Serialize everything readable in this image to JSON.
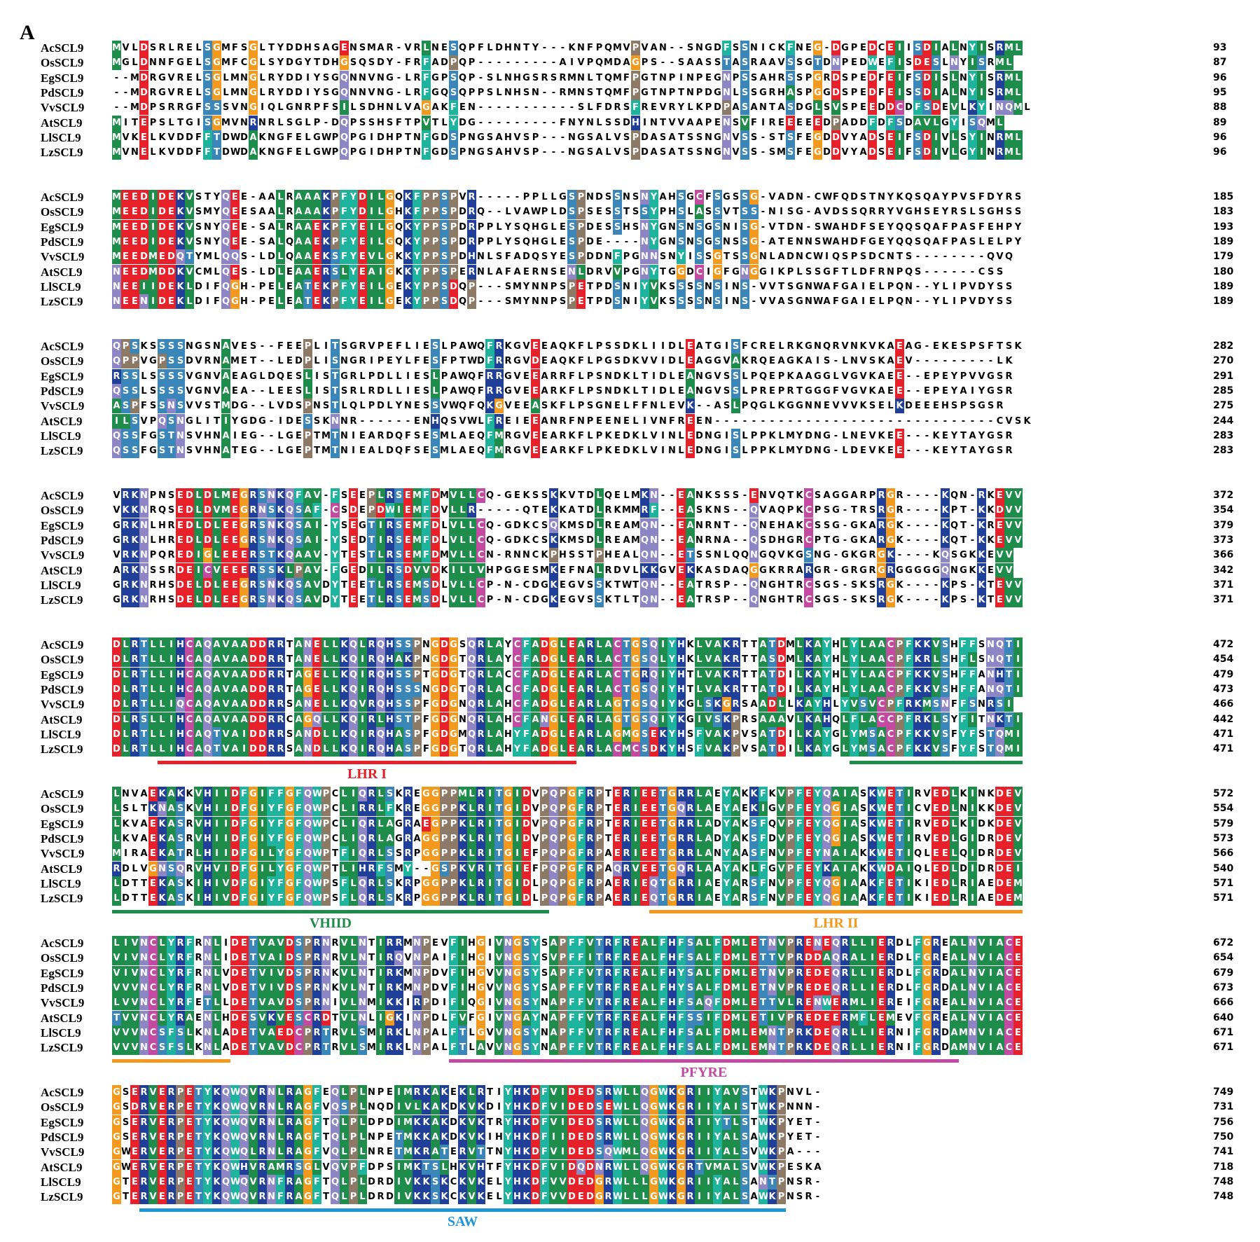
{
  "figure": {
    "panel_label": "A"
  },
  "colors": {
    "D": "#e8202a",
    "E": "#e8202a",
    "K": "#1f3f99",
    "R": "#1f3f99",
    "H": "#1f3f99",
    "S": "#3b86b8",
    "T": "#3b86b8",
    "N": "#8e86c4",
    "Q": "#8e86c4",
    "G": "#f39a1e",
    "P": "#8d7a66",
    "C": "#c24aa0",
    "A": "#1e8c4a",
    "V": "#1e8c4a",
    "L": "#1e8c4a",
    "I": "#1e8c4a",
    "M": "#1e8c4a",
    "F": "#1db39c",
    "W": "#1db39c",
    "Y": "#1db39c"
  },
  "alignment": {
    "species": [
      "AcSCL9",
      "OsSCL9",
      "EgSCL9",
      "PdSCL9",
      "VvSCL9",
      "AtSCL9",
      "LlSCL9",
      "LzSCL9"
    ],
    "blocks": [
      {
        "rows": [
          {
            "name": "AcSCL9",
            "seq": "MVLDSRLRELSGMFSGLTYDDHSAGENSMAR-VRLNESQPFLDHNTY---KNFPQMVPVAN--SNGDFSSNICKFNEG-DGPEDCEIISDIALNYISRML",
            "end": "93"
          },
          {
            "name": "OsSCL9",
            "seq": "MGLDNNFGELSGMFCGLSYDGYTDHGSQSDY-FRFADPQP---------AIVPQMDAGPS--SAASSTASRAAVSSGTDNPEDWEFISDESLNYISRML",
            "end": "87"
          },
          {
            "name": "EgSCL9",
            "seq": "--MDRGVRELSGLMNGLRYDDIYSGQNNVNG-LRFGPSQP-SLNHGSRSRMNLTQMFPGTNPINPEGNPSSAHRSSPGRDSPEDFEIFSDISLNYISRML",
            "end": "96"
          },
          {
            "name": "PdSCL9",
            "seq": "--MDRGVRELSGLMNGLRYDDIYSGQNNVNG-LRFGQSQPPSLNHSN--RMNSTQMFPGTNPTNPDGNLSSGRHASPGGDSPEDFEISSDIALNYISRML",
            "end": "95"
          },
          {
            "name": "VvSCL9",
            "seq": "--MDPSRRGFSSSVNGIQLGNRPFSILSDHNLVAGAKFEN-----------SLFDRSFREVRYLKPDPASANTASDGLSVSPEEDDCDFSDEVLKYINQML",
            "end": "88"
          },
          {
            "name": "AtSCL9",
            "seq": "MITEPSLTGISGMVNRNRLSGLP-DQPSSHSFTPVTLYDG---------FNYNLSSDHINTVVAAPENSVFIREEEEEDPADDFDFSDAVLGYISQML",
            "end": "89"
          },
          {
            "name": "LlSCL9",
            "seq": "MVKELKVDDFFTDWDAKNGFELGWPQPGIDHPTNFGDSPNGSAHVSP---NGSALVSPDASATSSNGNVSS-STSFEGDDVYADSEIFSDIVLSYINRML",
            "end": "96"
          },
          {
            "name": "LzSCL9",
            "seq": "MVNELKVDDFFTDWDAKNGFELGWPQPGIDHPTNFGDSPNGSAHVSP---NGSALVSPDASATSSNGNVSS-SMSFEGDDVYADSEIFSDIVLGYINRML",
            "end": "96"
          }
        ],
        "domains": []
      },
      {
        "rows": [
          {
            "name": "AcSCL9",
            "seq": "MEEDIDEKVSTYQEE-AALRAAAKPFYDILGQKFPPSPVR-----PPLLGSPNDSSNSNYAHSGCFSGSSG-VADN-CWFQDSTNYKQSQAYPVSFDYRS",
            "end": "185"
          },
          {
            "name": "OsSCL9",
            "seq": "MEEDIDEKVSMYQEESAALRAAAKPFYDILGHKFPPSPDRQ--LVAWPLDSPSESSTSSYPHSLASSVTSS-NISG-AVDSSQRRYVGHSEYRSLSGHSS",
            "end": "183"
          },
          {
            "name": "EgSCL9",
            "seq": "MEEDIDEKVSNYQEE-SALRAAEKPFYEILGQKYPPSPDRPPLYSQHGLESPDESSHSNYGNSNSGSNISG-VTDN-SWAHDFSEYQQSQAFPASFEHPY",
            "end": "193"
          },
          {
            "name": "PdSCL9",
            "seq": "MEEDIDEKVSNYQEE-SALQAAEKPFYEILGQKYPPSPDRPPLYSQHGLESPDE----NYGNSNSGSNSSG-ATENNSWAHDFGEYQQSQAFPASLELPY",
            "end": "189"
          },
          {
            "name": "VvSCL9",
            "seq": "MEEDMEDQTYMLQQS-LDLQAAEKSFYEVLGKKYPPSPDHNLSFADQSYESPDDNFPGNNSNYISSGTSSGNLADNCWIQSPSDCNTS--------QVQ",
            "end": "179"
          },
          {
            "name": "AtSCL9",
            "seq": "NEEDMDDKVCMLQES-LDLEAAERSLYEAIGKKYPPSPERNLAFAERNSENLDRVVPGNYTGGDCIGFGNGGIKPLSSGFTLDFRNPQS------CSS",
            "end": "180"
          },
          {
            "name": "LlSCL9",
            "seq": "NEEIIDEKLDIFQGH-PELEATEKPFYEILGEKYPPSDQP---SMYNNPSPETPDSNIYVKSSSSNSINS-VVTSGNWAFGAIELPQN--YLIPVDYSS",
            "end": "189"
          },
          {
            "name": "LzSCL9",
            "seq": "NEENIDEKLDIFQGH-PELEATEKPFYEILGEKYPPSDQP---SMYNNPSPETPDSNIYVKSSSSNSINS-VVASGNWAFGAIELPQN--YLIPVDYSS",
            "end": "189"
          }
        ],
        "domains": []
      },
      {
        "rows": [
          {
            "name": "AcSCL9",
            "seq": "QPSKSSSSNGSNAVES--FEEPLITSGRVPEFLIESLPAWQFRKGVEEAQKFLPSSDKLIIDLEATGISFCRELRKGNQRVNKVKAEAG-EKESPSFTSK",
            "end": "282"
          },
          {
            "name": "OsSCL9",
            "seq": "QPPVGPSSDVRNAMET--LEDPLISNGRIPEYLFESFPTWDFRRGVDEAQKFLPGSDKVVIDLEAGGVAKRQEAGKAIS-LNVSKAEV---------LK",
            "end": "270"
          },
          {
            "name": "EgSCL9",
            "seq": "RSSLSSSSVGNVAEAGLDQESLISTGRLPDLLIESLPAWQFRRGVEEARRFLPSNDKLTIDLEANGVSSLPQEPKAAGGLVGVKAEE--EPEYPVVGSR",
            "end": "291"
          },
          {
            "name": "PdSCL9",
            "seq": "QSSLSSSSVGNVAEA--LEESLISTSRLRDLLIESLPAWQFRRGVEEARKFLPSNDKLTIDLEANGVSSLPREPRTGGGFVGVKAEE--EPEYAIYGSR",
            "end": "285"
          },
          {
            "name": "VvSCL9",
            "seq": "ASPFSSNSVVSTMDG--LVDSPNSTLQLPDLYNESSVWQFQKGVEEASKFLPSGNELFFNLEVK--ASLPQGLKGGNNEVVVKSELKDEEEHSPSGSR",
            "end": "275"
          },
          {
            "name": "AtSCL9",
            "seq": "ILSVPQSNGLITIYGDG-IDESSKNNR------ENHQSVWLFREIEEANRFNPEENELIVNFREEN-------------------------------CVSK",
            "end": "244"
          },
          {
            "name": "LlSCL9",
            "seq": "QSSFGSTNSVHNAIEG--LGEPTMTNIEARDQFSESMLAEQFMRGVEEARKFLPKEDKLVINLEDNGISLPPKLMYDNG-LNEVKEE---KEYTAYGSR",
            "end": "283"
          },
          {
            "name": "LzSCL9",
            "seq": "QSSFGSTNSVHNATEG--LGEPTMTNIEALDQFSESMLAEQFMRGVEEARKFLPKEDKLVINLEDNGISLPPKLMYDNG-LDEVKEE---KEYTAYGSR",
            "end": "283"
          }
        ],
        "domains": []
      },
      {
        "rows": [
          {
            "name": "AcSCL9",
            "seq": "VRKNPNSEDLDLMEGRSNKQFAV-FSEEPLRSEMFDMVLLCQ-GEKSSKKVTDLQELMKN--EANKSSS-ENVQTKCSAGGARPRGR----KQN-RKEVV",
            "end": "372"
          },
          {
            "name": "OsSCL9",
            "seq": "VKKNRQSEDLDVMEGRNSKQSAF-CSDEPDWIEMFDVLLR-----QTEKKATDLRKMMRF--EASKNS--QVAQPKCPSG-TRSRGR----KPT-KKDVV",
            "end": "354"
          },
          {
            "name": "EgSCL9",
            "seq": "GRKNLHREDLDLEEGRSNKQSAI-YSEGTIRSEMFDLVLLCQ-GDKCSQKMSDLREAMQN--EANRNT--QNEHAKCSSG-GKARGK----KQT-KREVV",
            "end": "379"
          },
          {
            "name": "PdSCL9",
            "seq": "GRKNLHREDLDLEEGRSNKQSAI-YSEDTIRSEMFDLVLLCQ-GDKCSKKMSDLREAMQN--EANRNA--QSDHGRCPTG-GKARGK----KQT-KKEVV",
            "end": "373"
          },
          {
            "name": "VvSCL9",
            "seq": "VRKNPQREDIGLEEERSTKQAAV-YTESTLRSEMFDMVLLCN-RNNCKPHSSTPHEALQN--ETSSNLQQNGQVKGSNG-GKGRGK----KQSGKKEVV",
            "end": "366"
          },
          {
            "name": "AtSCL9",
            "seq": "ARKNSSRDEICVEEERSSKLPAV-FGEDILRSDVVDKILLVHPGGESMKEFNALRDVLKKGVEKKASDAQGGKRRARGR-GRGRGRGGGGGQNGKKEVV",
            "end": "342"
          },
          {
            "name": "LlSCL9",
            "seq": "GRKNRHSDELDLEEGRSNKQSAVDYTEETLRSEMSDLVLLCP-N-CDGKEGVSSKTWTQN--EATRSP--QNGHTRCSGS-SKSRGK----KPS-KTEVV",
            "end": "371"
          },
          {
            "name": "LzSCL9",
            "seq": "GRKNRHSDELDLEEGRSNKQSAVDYTEETLRSEMSDLVLLCP-N-CDGKEGVSSKTLTQN--EATRSP--QNGHTRCSGS-SKSRGK----KPS-KTEVV",
            "end": "371"
          }
        ],
        "domains": []
      },
      {
        "rows": [
          {
            "name": "AcSCL9",
            "seq": "DLRTLLIHCAQAVAADDRRTANELLKQLRQHSSPNGDGSQRLAYCFADGLEARLACTGSQIYHKLVAKRTTATDMLKAYHLYLAACPFKKVSHFFSNQTI",
            "end": "472"
          },
          {
            "name": "OsSCL9",
            "seq": "DLRTLLIHCAQAVAADDRRTANELLKQIRQHAKPNGDGTQRLAYCFADGLEARLACTGSQLYHKLVAKRTTASDMLKAYHLYLAACPFKRLSHFLSNQTI",
            "end": "454"
          },
          {
            "name": "EgSCL9",
            "seq": "DLRTLLIHCAQAVAADDRRTAGELLKQIRQHSSPTGDGTQRLACCFADGLEARLACTGRQIYHTLVAKRTTATDILKAYHLYLAACPFKKVSHFFANHTI",
            "end": "479"
          },
          {
            "name": "PdSCL9",
            "seq": "DLRTLLIHCAQAVAADDRRTAGELLKQIRQHSSSNGDGTQRLACCFADGLEARLACTGSQIYHTLVAKRTTATDILKAYHLYLAACPFKKVSHFFANQTI",
            "end": "473"
          },
          {
            "name": "VvSCL9",
            "seq": "DLRTLLIQCAQAVAADDRRSANELLKQVRQHSSPFGDGNQRLAHCFADGLEARLAGTGSQIYKGLSKGRSAADLLKAYHLYVSVCPFRKMSNFFSNRSI",
            "end": "466"
          },
          {
            "name": "AtSCL9",
            "seq": "DLRSLLIHCAQAVAADDRRCAGQLLKQIRLHSTPFGDGNQRLAHCFANGLEARLAGTGSQIYKGIVSKPRSAAAVLKAHQLFLACCPFRKLSYFITNKTI",
            "end": "442"
          },
          {
            "name": "LlSCL9",
            "seq": "DLRTLLIHCAQTVAIDDRRSANDLLKQIRQHASPFGDGMQRLAHYFADGLEARLAGMGSEKYHSFVAKPVSATDILKAYGLYMSACPFKKVSFYFSTQMI",
            "end": "471"
          },
          {
            "name": "LzSCL9",
            "seq": "DLRTLLIHCAQTVAIDDRRSANDLLKQIRQHASPFGDGTQRLAHYFADGLEARLACMCSDKYHSFVAKPVSATDILKAYGLYMSACPFKKVSFYFSTQMI",
            "end": "471"
          }
        ],
        "domains": [
          {
            "label": "LHR I",
            "color": "#e8202a",
            "start": 5,
            "end": 51
          },
          {
            "label": "",
            "color": "#1e8c4a",
            "start": 81,
            "end": 100
          }
        ]
      },
      {
        "rows": [
          {
            "name": "AcSCL9",
            "seq": "LNVAEKAKKVHIIDFGIFFGFQWPCLIQRLSKREGGPPMLRITGIDVPQPGFRPTERIEETGRRLAEYAKKFKVPFEYQAIASKWETIRVEDLKINKDEV",
            "end": "572"
          },
          {
            "name": "OsSCL9",
            "seq": "LSLTKNASKVHIIDFGIYFGFQWPCLIRRLFKREGGPPKLRITGIDVPQPGFRPTERIEETGQRLAEYAEKIGVPFEYQGIASKWETICVEDLNIKKDEV",
            "end": "554"
          },
          {
            "name": "EgSCL9",
            "seq": "LKVAEKASRVHIIDFGIYFGFQWPCLIQRLAGRAEGPPKLRITGIDVPQPGFRPTERIEETGRRLADYAKSFQVPFEYQGIASKWETIRVEDLKIDKDEV",
            "end": "579"
          },
          {
            "name": "PdSCL9",
            "seq": "LKVAEKASRVHIIDFGIYFGFQWPCLIQRLAGRAGGPPKLRITGIDVPQPGFRPTERIEETGRRLADYAKSFDVPFEYQGIASKWETIRVEDLGIDRDEV",
            "end": "573"
          },
          {
            "name": "VvSCL9",
            "seq": "MIRAEKATRLHIIDFGILYGFQWPTFIQRLSSRPGGPPKLRITGIEFPQPGFRPAERIEETGRRLANYAASFNVPFEYNAIAKKWETIQLEELQIDRDEV",
            "end": "566"
          },
          {
            "name": "AtSCL9",
            "seq": "RDLVGNSQRVHVIDFGILYGFQWPTLIHRFSMY--GSPKVRITGIEFPQPGFRPAQRVEETGQRLAAYAKLFGVPFEYKAIAKKWDAIQLEDLDIDRDEI",
            "end": "540"
          },
          {
            "name": "LlSCL9",
            "seq": "LDTTEKASKIHIVDFGIYFGFQWPSFLQRLSKRPGGPPKLRITGIDLPQPGFRPAERIEQTGRRIAEYARSFNVPFEYQGIAAKFETIKIEDLRIAEDEM",
            "end": "571"
          },
          {
            "name": "LzSCL9",
            "seq": "LDTTEKASKIHIVDFGIYFGFQWPSFLQRLSKRPGGPPKLRITGIDLPQPGFRPAERIEQTGRRIAEYARSFNVPFEYQGIAAKFETIKIEDLRIAEDEM",
            "end": "571"
          }
        ],
        "domains": [
          {
            "label": "VHIID",
            "color": "#1e8c4a",
            "start": 0,
            "end": 48
          },
          {
            "label": "LHR II",
            "color": "#f39a1e",
            "start": 59,
            "end": 100
          }
        ]
      },
      {
        "rows": [
          {
            "name": "AcSCL9",
            "seq": "LIVNCLYRFRNLIDETVAVDSPRNRVLNTIRRMNPEVFIHGIVNGSYSAPFFVTRFREALFHFSALFDMLETNVPRENEQRLLIERDLFGREALNVIACE",
            "end": "672"
          },
          {
            "name": "OsSCL9",
            "seq": "VIVNCLYRFRNLIDETVAIDSPRNRVLNTIRQVNPAIFIHGIVNGSYSVPFFITRFREALFHFSALFDMLETTVPRDDAQRALIERDLFGREALNVIACE",
            "end": "654"
          },
          {
            "name": "EgSCL9",
            "seq": "VIVNCLYRFRNLVDETVIVDSPRNKVLNTIRKMNPDVFIHGVVNGSYSAPFFVTRFREALFHYSALFDMLETNVPREDEQRLLIERDLFGRDALNVIACE",
            "end": "679"
          },
          {
            "name": "PdSCL9",
            "seq": "VVVNCLYRFRNLVDETVIVDSPRNKVLNTIRKMNPDVFIHGVVNGSYSAPFFVTRFREALFHYSALFDMLETNVPREDEQRLLIERDLFGRDALNVIACE",
            "end": "673"
          },
          {
            "name": "VvSCL9",
            "seq": "LVVNCLYRFETLLDETVAVDSPRNIVLNMIKKIRPDIFIQGIVNGSYNAPFFVTRFREALFHFSAQFDMLETTVLRENWERMLIEREIFGREALNVIACE",
            "end": "666"
          },
          {
            "name": "AtSCL9",
            "seq": "TVVNCLYRAENLHDESVKVESCRDTVLNLIGKINPDLFVFGIVNGAYNAPFFVTRFREALFHFSSIFDMLETIVPREDEERMFLEMEVFGREALNVIACE",
            "end": "640"
          },
          {
            "name": "LlSCL9",
            "seq": "VVVNCSFSLKNLADETVAEDCPRTRVLSMIRKLNPALFTLGVVNGSYNAPFFVTRFREALFHFSALFDMLEMNTPRKDEQRLLIERNIFGRDAMNVIACE",
            "end": "671"
          },
          {
            "name": "LzSCL9",
            "seq": "VVVNCSFSLKNLADETVAVDCPRTRVLSMIRKLNPALFTLAVVNGSYNAPFFVTRFREALFHFSALFDMLEMNTPRKDEQRLLIERNIFGRDAMNVIACE",
            "end": "671"
          }
        ],
        "domains": [
          {
            "label": "",
            "color": "#f39a1e",
            "start": 0,
            "end": 13
          },
          {
            "label": "PFYRE",
            "color": "#c24aa0",
            "start": 37,
            "end": 93
          }
        ]
      },
      {
        "rows": [
          {
            "name": "AcSCL9",
            "seq": "GSERVERPETYKQWQVRNLRAGFEQLPLNPEIMRKAKEKLRTIYHKDFVIDEDSRWLLQGWKGRIIYAVSTWKPNVL-",
            "end": "749"
          },
          {
            "name": "OsSCL9",
            "seq": "GSDRVERPETYKQWQVRNLRAGFVQSPLNQDIVLKAKDKVKDIYHKDFVIDEDSEWLLQGWKGRIIYAISTWKPNNN-",
            "end": "731"
          },
          {
            "name": "EgSCL9",
            "seq": "GSERVERPETYKQWQVRNLRAGFTQLPLDPDIMKKAKDKVKTRYHKDFVIDEDSRWLLQGWKGRIIYTLSTWKPYET-",
            "end": "756"
          },
          {
            "name": "PdSCL9",
            "seq": "GSERVERPETYKQWQVRNLRAGFTQLPLNPETMKKAKDKVKIHYHKDFIIDEDSRWLLQGWKGRIIYALSAWKPYET-",
            "end": "750"
          },
          {
            "name": "VvSCL9",
            "seq": "GWERVERPETYKQWQLRNLRAGFVQLPLNRETMKRATERVTTNYHKDFVIDEDSQWMLQGWKGRIIYALSVWKPA---",
            "end": "741"
          },
          {
            "name": "AtSCL9",
            "seq": "GWERVERPETYKQWHVRAMRSGLVQVPFDPSIMKTSLHKVHTFYHKDFVIDQDNRWLLQGWKGRTVMALSVWKPESKA",
            "end": "718"
          },
          {
            "name": "LlSCL9",
            "seq": "GTERVERPETYKQWQVRNFRAGFTQLPLDRDIVKKSKCKVKELYHKDFVVDEDGRWLLLGWKGRIIYALSANTPNSR-",
            "end": "748"
          },
          {
            "name": "LzSCL9",
            "seq": "GTERVERPETYKQWQVRNFRAGFTQLPLDRDIVKKSKCKVKELYHKDFVVDEDGRWLLLGWKGRIIYALSAWKPNSR-",
            "end": "748"
          }
        ],
        "domains": [
          {
            "label": "SAW",
            "color": "#1f95d8",
            "start": 3,
            "end": 74
          }
        ]
      }
    ]
  }
}
